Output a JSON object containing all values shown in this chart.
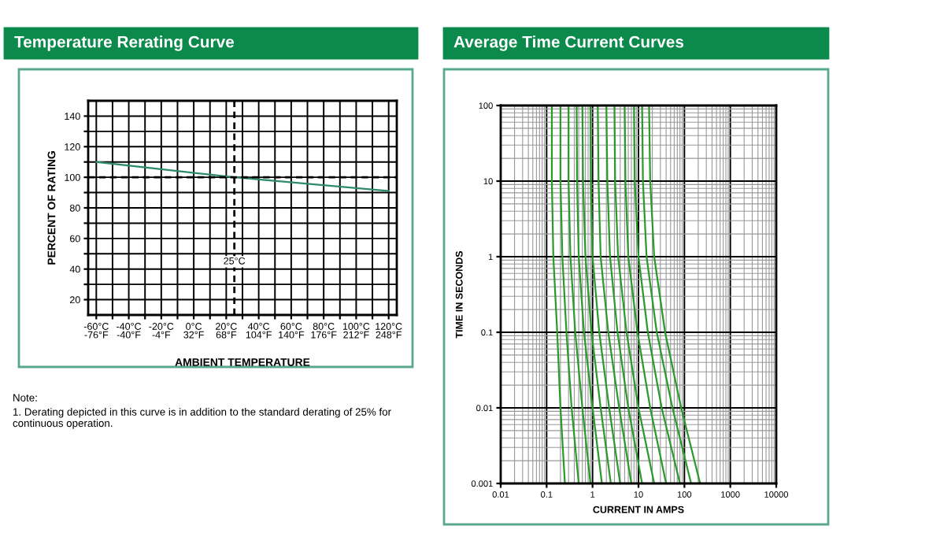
{
  "chart_data": [
    {
      "type": "line",
      "title": "Temperature Rerating Curve",
      "xlabel": "AMBIENT TEMPERATURE",
      "ylabel": "PERCENT OF RATING",
      "series": [
        {
          "color": "#2e8b6a",
          "x": [
            -60,
            25,
            120
          ],
          "values": [
            110,
            100,
            91
          ]
        }
      ],
      "xlim": [
        -65,
        125
      ],
      "ylim": [
        10,
        150
      ],
      "xticks": [
        {
          "value": -60,
          "label": "-60°C"
        },
        {
          "value": -50,
          "label": null
        },
        {
          "value": -40,
          "label": "-40°C"
        },
        {
          "value": -30,
          "label": null
        },
        {
          "value": -20,
          "label": "-20°C"
        },
        {
          "value": -10,
          "label": null
        },
        {
          "value": 0,
          "label": "0°C"
        },
        {
          "value": 10,
          "label": null
        },
        {
          "value": 20,
          "label": "20°C"
        },
        {
          "value": 30,
          "label": null
        },
        {
          "value": 40,
          "label": "40°C"
        },
        {
          "value": 50,
          "label": null
        },
        {
          "value": 60,
          "label": "60°C"
        },
        {
          "value": 70,
          "label": null
        },
        {
          "value": 80,
          "label": "80°C"
        },
        {
          "value": 90,
          "label": null
        },
        {
          "value": 100,
          "label": "100°C"
        },
        {
          "value": 110,
          "label": null
        },
        {
          "value": 120,
          "label": "120°C"
        }
      ],
      "x2lim": [
        -85,
        257
      ],
      "x2ticks": [
        {
          "value": -76,
          "label": "-76°F"
        },
        {
          "value": -40,
          "label": "-40°F"
        },
        {
          "value": -4,
          "label": "-4°F"
        },
        {
          "value": 32,
          "label": "32°F"
        },
        {
          "value": 68,
          "label": "68°F"
        },
        {
          "value": 104,
          "label": "104°F"
        },
        {
          "value": 140,
          "label": "140°F"
        },
        {
          "value": 176,
          "label": "176°F"
        },
        {
          "value": 212,
          "label": "212°F"
        },
        {
          "value": 248,
          "label": "248°F"
        }
      ],
      "yticks": [
        20,
        {
          "value": 30,
          "label": null
        },
        40,
        {
          "value": 50,
          "label": null
        },
        60,
        {
          "value": 70,
          "label": null
        },
        80,
        {
          "value": 90,
          "label": null
        },
        100,
        {
          "value": 110,
          "label": null
        },
        120,
        {
          "value": 130,
          "label": null
        },
        140
      ],
      "grid": true,
      "ref_lines": [
        {
          "axis": "y",
          "value": 100,
          "line_style": "dashed"
        },
        {
          "axis": "x",
          "value": 25,
          "label": "25°C",
          "line_style": "dashed"
        }
      ],
      "annotations": [
        "Note:",
        "1. Derating depicted in this curve is in addition to the standard derating of 25% for continuous operation."
      ]
    },
    {
      "type": "line",
      "title": "Average Time Current Curves",
      "xlabel": "CURRENT IN AMPS",
      "ylabel": "TIME IN SECONDS",
      "log": "xy",
      "series": [
        {
          "color": "#2a9a2a",
          "x": [
            0.13,
            0.13,
            0.14,
            0.17,
            0.2,
            0.25
          ],
          "values": [
            100,
            10,
            1,
            0.1,
            0.01,
            0.001
          ]
        },
        {
          "color": "#2a9a2a",
          "x": [
            0.2,
            0.2,
            0.22,
            0.27,
            0.35,
            0.5
          ],
          "values": [
            100,
            10,
            1,
            0.1,
            0.01,
            0.001
          ]
        },
        {
          "color": "#2a9a2a",
          "x": [
            0.3,
            0.3,
            0.33,
            0.42,
            0.6,
            0.9
          ],
          "values": [
            100,
            10,
            1,
            0.1,
            0.01,
            0.001
          ]
        },
        {
          "color": "#2a9a2a",
          "x": [
            0.45,
            0.46,
            0.5,
            0.65,
            1,
            1.6
          ],
          "values": [
            100,
            10,
            1,
            0.1,
            0.01,
            0.001
          ]
        },
        {
          "color": "#2a9a2a",
          "x": [
            0.6,
            0.62,
            0.7,
            0.95,
            1.5,
            2.5
          ],
          "values": [
            100,
            10,
            1,
            0.1,
            0.01,
            0.001
          ]
        },
        {
          "color": "#2a9a2a",
          "x": [
            0.9,
            0.92,
            1,
            1.4,
            2.3,
            4
          ],
          "values": [
            100,
            10,
            1,
            0.1,
            0.01,
            0.001
          ]
        },
        {
          "color": "#2a9a2a",
          "x": [
            1.3,
            1.35,
            1.5,
            2.2,
            3.8,
            7
          ],
          "values": [
            100,
            10,
            1,
            0.1,
            0.01,
            0.001
          ]
        },
        {
          "color": "#2a9a2a",
          "x": [
            2,
            2.1,
            2.4,
            3.5,
            6,
            12
          ],
          "values": [
            100,
            10,
            1,
            0.1,
            0.01,
            0.001
          ]
        },
        {
          "color": "#2a9a2a",
          "x": [
            3,
            3.1,
            3.6,
            5.5,
            10,
            22
          ],
          "values": [
            100,
            10,
            1,
            0.1,
            0.01,
            0.001
          ]
        },
        {
          "color": "#2a9a2a",
          "x": [
            5,
            5.2,
            6,
            9.5,
            18,
            40
          ],
          "values": [
            100,
            10,
            1,
            0.1,
            0.01,
            0.001
          ]
        },
        {
          "color": "#2a9a2a",
          "x": [
            8,
            8.3,
            10,
            16,
            32,
            80
          ],
          "values": [
            100,
            10,
            1,
            0.1,
            0.01,
            0.001
          ]
        },
        {
          "color": "#2a9a2a",
          "x": [
            12,
            12.5,
            15,
            25,
            55,
            140
          ],
          "values": [
            100,
            10,
            1,
            0.1,
            0.01,
            0.001
          ]
        },
        {
          "color": "#2a9a2a",
          "x": [
            17,
            18,
            22,
            38,
            85,
            220
          ],
          "values": [
            100,
            10,
            1,
            0.1,
            0.01,
            0.001
          ]
        }
      ],
      "xlim": [
        0.01,
        10000
      ],
      "ylim": [
        0.001,
        100
      ],
      "xticks": [
        0.01,
        0.1,
        1,
        10,
        100,
        1000,
        10000
      ],
      "yticks": [
        0.001,
        0.01,
        0.1,
        1,
        10,
        100
      ],
      "grid": true
    }
  ]
}
